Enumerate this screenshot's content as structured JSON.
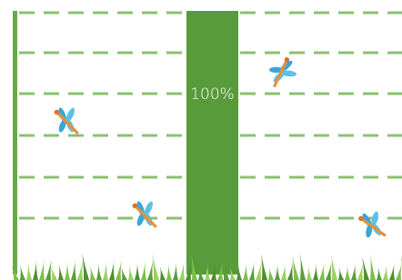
{
  "chart_data": {
    "type": "bar",
    "categories": [
      null
    ],
    "values": [
      100
    ],
    "value_labels": [
      "100%"
    ],
    "color": "#579b3a",
    "ylim": [
      0,
      100
    ],
    "grid": true
  }
}
